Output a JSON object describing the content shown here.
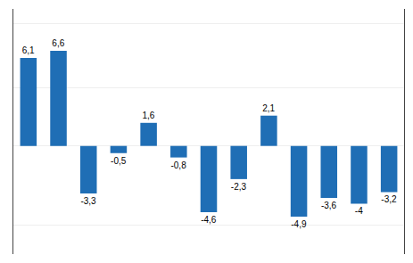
{
  "chart_data": {
    "type": "bar",
    "categories": [
      null,
      null,
      null,
      null,
      null,
      null,
      null,
      null,
      null,
      null,
      null,
      null,
      null
    ],
    "values": [
      6.1,
      6.6,
      -3.3,
      -0.5,
      1.6,
      -0.8,
      -4.6,
      -2.3,
      2.1,
      -4.9,
      -3.6,
      -4.0,
      -3.2
    ],
    "value_labels": [
      "6,1",
      "6,6",
      "-3,3",
      "-0,5",
      "1,6",
      "-0,8",
      "-4,6",
      "-2,3",
      "2,1",
      "-4,9",
      "-3,6",
      "-4",
      "-3,2"
    ],
    "color": "#1F6EB5",
    "ylim": [
      -7.5,
      9.5
    ],
    "yticks": [
      -5.5,
      0,
      4,
      8.5
    ],
    "grid": true,
    "tick_labels": false,
    "data_labels": true
  }
}
